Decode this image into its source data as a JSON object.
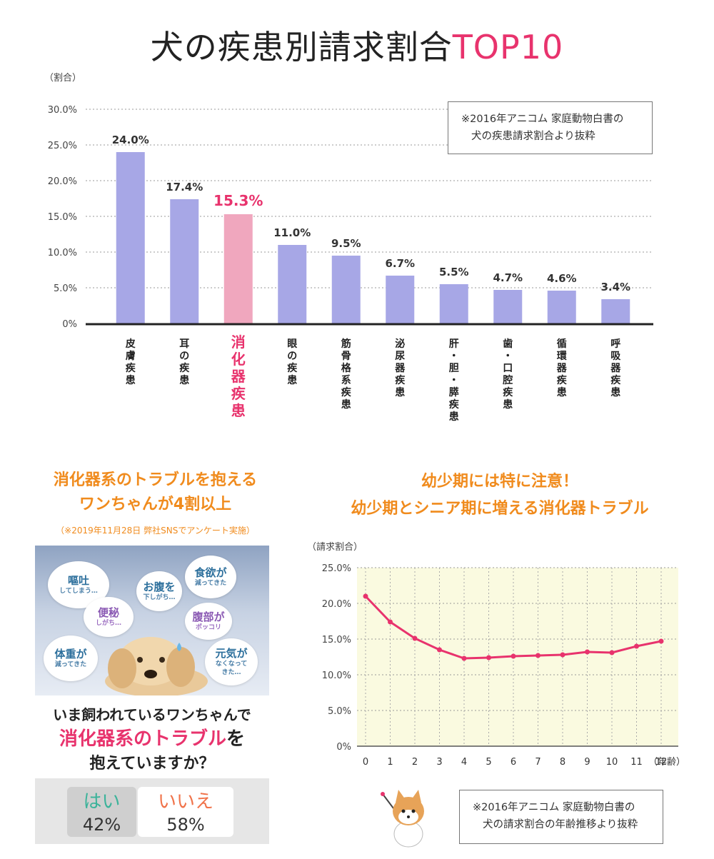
{
  "title": {
    "main": "犬の疾患別請求割合",
    "accent": "TOP10"
  },
  "chart_data": [
    {
      "type": "bar",
      "ylabel": "（割合）",
      "ylim": [
        0,
        30
      ],
      "yticks": [
        "0%",
        "5.0%",
        "10.0%",
        "15.0%",
        "20.0%",
        "25.0%",
        "30.0%"
      ],
      "grid": true,
      "categories": [
        "皮膚疾患",
        "耳の疾患",
        "消化器疾患",
        "眼の疾患",
        "筋骨格系疾患",
        "泌尿器疾患",
        "肝・胆・膵疾患",
        "歯・口腔疾患",
        "循環器疾患",
        "呼吸器疾患"
      ],
      "values": [
        24.0,
        17.4,
        15.3,
        11.0,
        9.5,
        6.7,
        5.5,
        4.7,
        4.6,
        3.4
      ],
      "value_labels": [
        "24.0%",
        "17.4%",
        "15.3%",
        "11.0%",
        "9.5%",
        "6.7%",
        "5.5%",
        "4.7%",
        "4.6%",
        "3.4%"
      ],
      "highlight_index": 2,
      "colors": {
        "bar": "#a7a7e6",
        "highlight": "#f0a7be",
        "highlight_text": "#e8336d",
        "axis": "#222222"
      },
      "note": [
        "※2016年アニコム 家庭動物白書の",
        "犬の疾患請求割合より抜粋"
      ]
    },
    {
      "type": "line",
      "title": [
        "幼少期には特に注意！",
        "幼少期とシニア期に増える消化器トラブル"
      ],
      "ylabel": "（請求割合）",
      "xlabel": "（年齢）",
      "x": [
        0,
        1,
        2,
        3,
        4,
        5,
        6,
        7,
        8,
        9,
        10,
        11,
        12
      ],
      "values": [
        21.0,
        17.4,
        15.1,
        13.5,
        12.3,
        12.4,
        12.6,
        12.7,
        12.8,
        13.2,
        13.1,
        14.0,
        14.7
      ],
      "ylim": [
        0,
        25
      ],
      "yticks": [
        "0%",
        "5.0%",
        "10.0%",
        "15.0%",
        "20.0%",
        "25.0%"
      ],
      "grid": true,
      "colors": {
        "line": "#e8336d",
        "background": "#fafae0"
      },
      "note": [
        "※2016年アニコム 家庭動物白書の",
        "犬の請求割合の年齢推移より抜粋"
      ]
    }
  ],
  "survey": {
    "heading": [
      "消化器系のトラブルを抱える",
      "ワンちゃんが4割以上"
    ],
    "source": "（※2019年11月28日 弊社SNSでアンケート実施）",
    "bubbles": [
      {
        "big": "嘔吐",
        "small": "してしまう…"
      },
      {
        "big": "お腹を",
        "small": "下しがち…"
      },
      {
        "big": "食欲が",
        "small": "減ってきた"
      },
      {
        "big": "便秘",
        "small": "しがち…"
      },
      {
        "big": "腹部が",
        "small": "ポッコリ"
      },
      {
        "big": "体重が",
        "small": "減ってきた"
      },
      {
        "big": "元気が",
        "small": "なくなって\nきた…"
      }
    ],
    "question_line1": "いま飼われているワンちゃんで",
    "question_accent": "消化器系のトラブル",
    "question_suffix": "を",
    "question_line3": "抱えていますか？",
    "answers": [
      {
        "label": "はい",
        "pct": "42%",
        "color": "#3bb39a"
      },
      {
        "label": "いいえ",
        "pct": "58%",
        "color": "#f0734a"
      }
    ]
  }
}
